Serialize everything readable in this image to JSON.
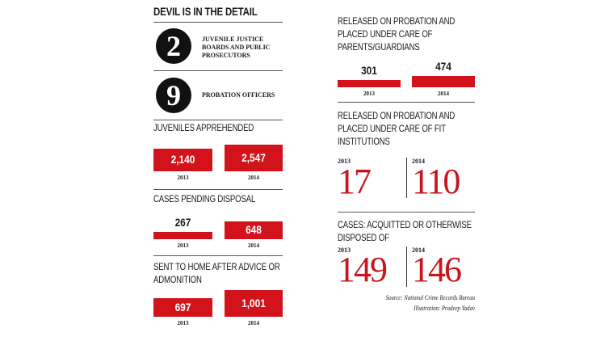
{
  "title": "DEVIL IS IN THE DETAIL",
  "stats": [
    {
      "number": 2,
      "label": "JUVENILE JUSTICE BOARDS AND PUBLIC PROSECUTORS"
    },
    {
      "number": 9,
      "label": "PROBATION OFFICERS"
    }
  ],
  "bar_sections": [
    {
      "title": "JUVENILES APPREHENDED",
      "bars": [
        {
          "year": "2013",
          "value": 2140,
          "value_label": "2,140"
        },
        {
          "year": "2014",
          "value": 2547,
          "value_label": "2,547"
        }
      ]
    },
    {
      "title": "CASES PENDING DISPOSAL",
      "bars": [
        {
          "year": "2013",
          "value": 267,
          "value_label": "267"
        },
        {
          "year": "2014",
          "value": 648,
          "value_label": "648"
        }
      ]
    },
    {
      "title": "SENT TO HOME AFTER ADVICE OR ADMONITION",
      "bars": [
        {
          "year": "2013",
          "value": 697,
          "value_label": "697"
        },
        {
          "year": "2014",
          "value": 1001,
          "value_label": "1,001"
        }
      ]
    },
    {
      "title": "RELEASED ON PROBATION AND PLACED UNDER CARE OF PARENTS/GUARDIANS",
      "bars": [
        {
          "year": "2013",
          "value": 301,
          "value_label": "301"
        },
        {
          "year": "2014",
          "value": 474,
          "value_label": "474"
        }
      ]
    }
  ],
  "number_sections": [
    {
      "title": "RELEASED ON PROBATION AND PLACED UNDER CARE OF FIT INSTITUTIONS",
      "items": [
        {
          "year": "2013",
          "value": 17
        },
        {
          "year": "2014",
          "value": 110
        }
      ]
    },
    {
      "title": "CASES: ACQUITTED OR OTHERWISE DISPOSED OF",
      "items": [
        {
          "year": "2013",
          "value": 149
        },
        {
          "year": "2014",
          "value": 146
        }
      ]
    }
  ],
  "source": "Source: National Crime Records Bureau",
  "credit": "Illustration: Pradeep Yadav"
}
